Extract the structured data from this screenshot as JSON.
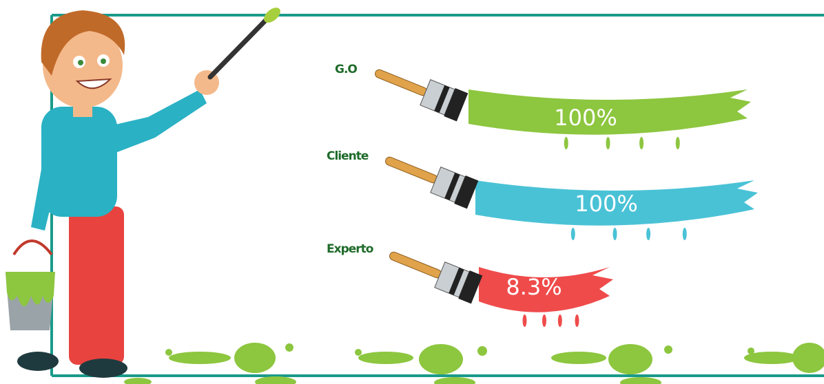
{
  "skills": [
    {
      "label": "G.O",
      "value": "100%"
    },
    {
      "label": "Cliente",
      "value": "100%"
    },
    {
      "label": "Experto",
      "value": "8.3%"
    }
  ]
}
